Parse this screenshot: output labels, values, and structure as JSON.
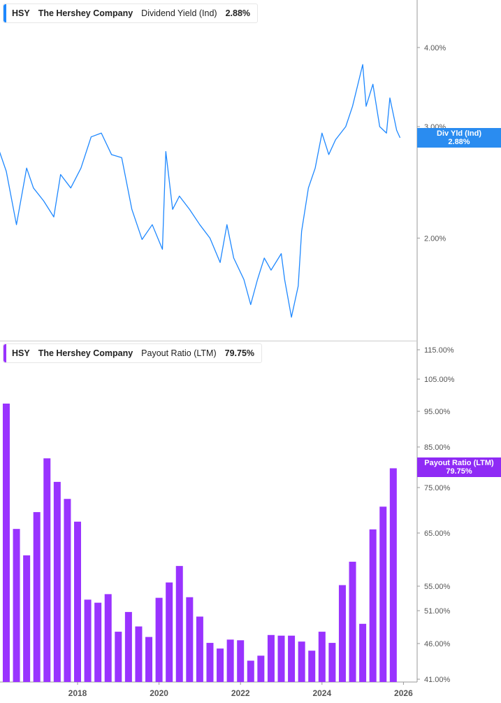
{
  "top_legend": {
    "ticker": "HSY",
    "company": "The Hershey Company",
    "metric": "Dividend Yield (Ind)",
    "value": "2.88%"
  },
  "bottom_legend": {
    "ticker": "HSY",
    "company": "The Hershey Company",
    "metric": "Payout Ratio (LTM)",
    "value": "79.75%"
  },
  "top_tag": {
    "label": "Div Yld (Ind)",
    "value": "2.88%"
  },
  "bottom_tag": {
    "label": "Payout Ratio (LTM)",
    "value": "79.75%"
  },
  "colors": {
    "yield": "#1e88ff",
    "payout": "#9933ff",
    "tag_yield": "#2a8cf0",
    "tag_payout": "#8f2bf5"
  },
  "chart_data": [
    {
      "type": "line",
      "series": [
        {
          "name": "Dividend Yield (Ind)",
          "points": [
            [
              "2016-02",
              2.74
            ],
            [
              "2016-04",
              2.55
            ],
            [
              "2016-07",
              2.1
            ],
            [
              "2016-10",
              2.58
            ],
            [
              "2016-12",
              2.4
            ],
            [
              "2017-03",
              2.29
            ],
            [
              "2017-06",
              2.16
            ],
            [
              "2017-08",
              2.52
            ],
            [
              "2017-11",
              2.4
            ],
            [
              "2018-02",
              2.58
            ],
            [
              "2018-05",
              2.89
            ],
            [
              "2018-08",
              2.93
            ],
            [
              "2018-11",
              2.71
            ],
            [
              "2019-02",
              2.68
            ],
            [
              "2019-05",
              2.22
            ],
            [
              "2019-08",
              1.99
            ],
            [
              "2019-11",
              2.1
            ],
            [
              "2020-02",
              1.92
            ],
            [
              "2020-03",
              2.74
            ],
            [
              "2020-05",
              2.22
            ],
            [
              "2020-07",
              2.33
            ],
            [
              "2020-10",
              2.22
            ],
            [
              "2021-01",
              2.1
            ],
            [
              "2021-04",
              2.0
            ],
            [
              "2021-07",
              1.83
            ],
            [
              "2021-09",
              2.1
            ],
            [
              "2021-11",
              1.86
            ],
            [
              "2022-02",
              1.72
            ],
            [
              "2022-04",
              1.57
            ],
            [
              "2022-06",
              1.72
            ],
            [
              "2022-08",
              1.86
            ],
            [
              "2022-10",
              1.78
            ],
            [
              "2023-01",
              1.89
            ],
            [
              "2023-02",
              1.72
            ],
            [
              "2023-04",
              1.5
            ],
            [
              "2023-06",
              1.68
            ],
            [
              "2023-07",
              2.05
            ],
            [
              "2023-09",
              2.4
            ],
            [
              "2023-11",
              2.58
            ],
            [
              "2024-01",
              2.93
            ],
            [
              "2024-03",
              2.71
            ],
            [
              "2024-05",
              2.86
            ],
            [
              "2024-08",
              3.0
            ],
            [
              "2024-10",
              3.23
            ],
            [
              "2025-01",
              3.76
            ],
            [
              "2025-02",
              3.23
            ],
            [
              "2025-04",
              3.5
            ],
            [
              "2025-06",
              3.0
            ],
            [
              "2025-08",
              2.93
            ],
            [
              "2025-09",
              3.33
            ],
            [
              "2025-11",
              2.96
            ],
            [
              "2025-12",
              2.88
            ]
          ]
        }
      ],
      "yscale": "log",
      "yticks": [
        "4.00%",
        "3.00%",
        "2.00%"
      ],
      "ytick_values": [
        4,
        3,
        2
      ],
      "grid": false
    },
    {
      "type": "bar",
      "series": [
        {
          "name": "Payout Ratio (LTM)",
          "dates": [
            "2016-04",
            "2016-07",
            "2016-10",
            "2017-01",
            "2017-04",
            "2017-07",
            "2017-10",
            "2018-01",
            "2018-04",
            "2018-07",
            "2018-10",
            "2019-01",
            "2019-04",
            "2019-07",
            "2019-10",
            "2020-01",
            "2020-04",
            "2020-07",
            "2020-10",
            "2021-01",
            "2021-04",
            "2021-07",
            "2021-10",
            "2022-01",
            "2022-04",
            "2022-07",
            "2022-10",
            "2023-01",
            "2023-04",
            "2023-07",
            "2023-10",
            "2024-01",
            "2024-04",
            "2024-07",
            "2024-10",
            "2025-01",
            "2025-04",
            "2025-07",
            "2025-10"
          ],
          "values": [
            97.4,
            65.9,
            60.8,
            69.6,
            82.2,
            76.4,
            72.5,
            67.5,
            52.8,
            52.3,
            53.7,
            47.8,
            50.8,
            48.6,
            47.0,
            53.1,
            55.7,
            58.8,
            53.2,
            50.1,
            46.1,
            45.3,
            46.6,
            46.5,
            43.6,
            44.3,
            47.3,
            47.2,
            47.2,
            46.3,
            45.0,
            47.8,
            46.1,
            55.2,
            59.6,
            49.0,
            65.8,
            70.8,
            79.75
          ]
        }
      ],
      "yticks": [
        "115.00%",
        "105.00%",
        "95.00%",
        "85.00%",
        "75.00%",
        "65.00%",
        "55.00%",
        "51.00%",
        "46.00%",
        "41.00%"
      ],
      "ytick_values": [
        115,
        105,
        95,
        85,
        75,
        65,
        55,
        51,
        46,
        41
      ],
      "xticks": [
        "2018",
        "2020",
        "2022",
        "2024",
        "2026"
      ],
      "grid": false
    }
  ]
}
